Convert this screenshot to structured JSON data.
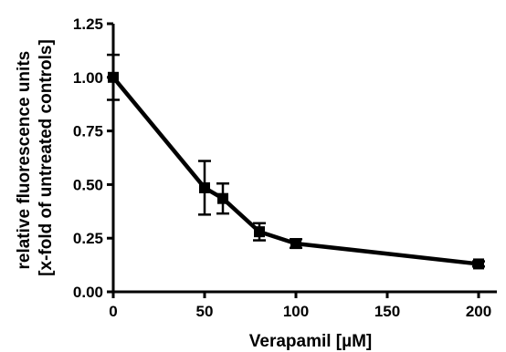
{
  "chart_data": {
    "type": "line",
    "xlabel": "Verapamil [µM]",
    "ylabel_lines": [
      "relative fluorescence units",
      "[x-fold of untreated controls]"
    ],
    "xlim": [
      0,
      210
    ],
    "ylim": [
      0,
      1.25
    ],
    "x_ticks": [
      0,
      50,
      100,
      150,
      200
    ],
    "x_tick_labels": [
      "0",
      "50",
      "100",
      "150",
      "200"
    ],
    "y_ticks": [
      0,
      0.25,
      0.5,
      0.75,
      1.0,
      1.25
    ],
    "y_tick_labels": [
      "0.00",
      "0.25",
      "0.50",
      "0.75",
      "1.00",
      "1.25"
    ],
    "grid": false,
    "legend": "none",
    "series": [
      {
        "x": [
          0,
          50,
          60,
          80,
          100,
          200
        ],
        "y": [
          1.0,
          0.485,
          0.435,
          0.28,
          0.225,
          0.13
        ],
        "error": [
          0.105,
          0.125,
          0.07,
          0.04,
          0.02,
          0.012
        ],
        "color": "#000000",
        "marker": "square"
      }
    ]
  }
}
